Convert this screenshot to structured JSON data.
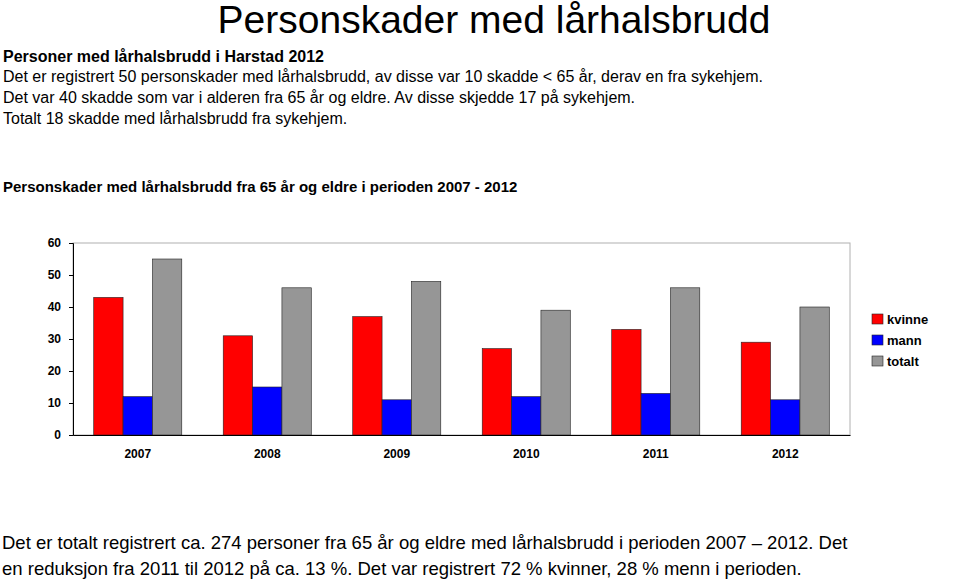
{
  "page": {
    "title": "Personskader med lårhalsbrudd",
    "heading": "Personer med lårhalsbrudd i Harstad 2012",
    "intro": [
      "Det er registrert 50 personskader med lårhalsbrudd, av disse var 10 skadde < 65 år, derav en fra sykehjem.",
      "Det var 40 skadde som var i alderen fra 65 år og eldre. Av disse skjedde 17 på sykehjem.",
      "Totalt 18 skadde med lårhalsbrudd fra sykehjem."
    ],
    "footer": [
      "Det er totalt registrert ca. 274 personer fra 65 år og eldre med lårhalsbrudd i perioden 2007 – 2012. Det",
      "en reduksjon fra 2011 til 2012 på ca. 13 %. Det var registrert 72 % kvinner, 28 % menn i perioden."
    ]
  },
  "chart_data": {
    "type": "bar",
    "title": "Personskader med lårhalsbrudd fra 65 år og eldre i perioden 2007 - 2012",
    "categories": [
      "2007",
      "2008",
      "2009",
      "2010",
      "2011",
      "2012"
    ],
    "series": [
      {
        "name": "kvinne",
        "color": "#ff0000",
        "values": [
          43,
          31,
          37,
          27,
          33,
          29
        ]
      },
      {
        "name": "mann",
        "color": "#0000ff",
        "values": [
          12,
          15,
          11,
          12,
          13,
          11
        ]
      },
      {
        "name": "totalt",
        "color": "#969696",
        "values": [
          55,
          46,
          48,
          39,
          46,
          40
        ]
      }
    ],
    "ylim": [
      0,
      60
    ],
    "yticks": [
      0,
      10,
      20,
      30,
      40,
      50,
      60
    ],
    "grid": false,
    "legend": "right"
  }
}
